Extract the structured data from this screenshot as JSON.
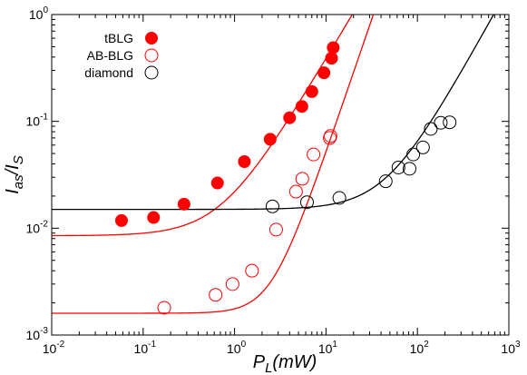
{
  "chart_data": {
    "type": "scatter",
    "title": "",
    "xlabel": {
      "main": "P",
      "sub": "L",
      "tail": "(mW)"
    },
    "ylabel": {
      "main": "I",
      "sub1": "as",
      "mid": "/I",
      "sub2": "S"
    },
    "xscale": "log",
    "yscale": "log",
    "xlim": [
      0.01,
      1000
    ],
    "ylim": [
      0.001,
      1
    ],
    "grid": false,
    "legend_position": "top-left",
    "x_tick_labels": [
      {
        "base": "10",
        "exp": "-2",
        "value": 0.01
      },
      {
        "base": "10",
        "exp": "-1",
        "value": 0.1
      },
      {
        "base": "10",
        "exp": "0",
        "value": 1
      },
      {
        "base": "10",
        "exp": "1",
        "value": 10
      },
      {
        "base": "10",
        "exp": "2",
        "value": 100
      },
      {
        "base": "10",
        "exp": "3",
        "value": 1000
      }
    ],
    "y_tick_labels": [
      {
        "base": "10",
        "exp": "-3",
        "value": 0.001
      },
      {
        "base": "10",
        "exp": "-2",
        "value": 0.01
      },
      {
        "base": "10",
        "exp": "-1",
        "value": 0.1
      },
      {
        "base": "10",
        "exp": "0",
        "value": 1
      }
    ],
    "series": [
      {
        "name": "tBLG",
        "marker": "filled-circle",
        "color": "#ff0000",
        "points": [
          [
            0.058,
            0.0118
          ],
          [
            0.13,
            0.0126
          ],
          [
            0.28,
            0.0168
          ],
          [
            0.65,
            0.0265
          ],
          [
            1.28,
            0.042
          ],
          [
            2.45,
            0.068
          ],
          [
            4.0,
            0.108
          ],
          [
            5.45,
            0.138
          ],
          [
            7.0,
            0.19
          ],
          [
            9.5,
            0.285
          ],
          [
            11.5,
            0.39
          ],
          [
            12.0,
            0.49
          ]
        ],
        "fit": {
          "form": "a + b*x^n",
          "a": 0.0085,
          "b": 0.0135,
          "n": 1.45
        }
      },
      {
        "name": "AB-BLG",
        "marker": "open-circle",
        "color": "#ff0000",
        "points": [
          [
            0.17,
            0.0018
          ],
          [
            0.62,
            0.00238
          ],
          [
            0.95,
            0.003
          ],
          [
            1.55,
            0.004
          ],
          [
            2.85,
            0.0097
          ],
          [
            4.7,
            0.022
          ],
          [
            5.5,
            0.029
          ],
          [
            7.3,
            0.049
          ],
          [
            11.0,
            0.07
          ],
          [
            11.2,
            0.073
          ]
        ],
        "fit": {
          "form": "a + b*x^n",
          "a": 0.0016,
          "b": 0.00016,
          "n": 2.5
        }
      },
      {
        "name": "diamond",
        "marker": "open-circle",
        "color": "#000000",
        "points": [
          [
            2.6,
            0.016
          ],
          [
            6.2,
            0.0175
          ],
          [
            14.0,
            0.0192
          ],
          [
            45.0,
            0.0275
          ],
          [
            62.0,
            0.037
          ],
          [
            82.0,
            0.036
          ],
          [
            90.0,
            0.049
          ],
          [
            115.0,
            0.057
          ],
          [
            140.0,
            0.085
          ],
          [
            180.0,
            0.097
          ],
          [
            225.0,
            0.098
          ]
        ],
        "fit": {
          "form": "a + b*x^n",
          "a": 0.015,
          "b": 4e-05,
          "n": 1.55
        }
      }
    ]
  }
}
